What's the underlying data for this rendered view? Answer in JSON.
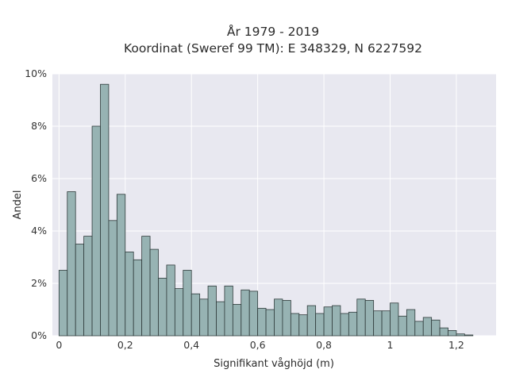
{
  "chart_data": {
    "type": "bar",
    "title_lines": [
      "År 1979 - 2019",
      "Koordinat (Sweref 99 TM): E 348329, N 6227592"
    ],
    "xlabel": "Signifikant våghöjd (m)",
    "ylabel": "Andel",
    "xlim": [
      -0.02,
      1.32
    ],
    "ylim": [
      0,
      10
    ],
    "x_ticks": [
      {
        "value": 0,
        "label": "0"
      },
      {
        "value": 0.2,
        "label": "0,2"
      },
      {
        "value": 0.4,
        "label": "0,4"
      },
      {
        "value": 0.6,
        "label": "0,6"
      },
      {
        "value": 0.8,
        "label": "0,8"
      },
      {
        "value": 1.0,
        "label": "1"
      },
      {
        "value": 1.2,
        "label": "1,2"
      }
    ],
    "y_ticks": [
      {
        "value": 0,
        "label": "0%"
      },
      {
        "value": 2,
        "label": "2%"
      },
      {
        "value": 4,
        "label": "4%"
      },
      {
        "value": 6,
        "label": "6%"
      },
      {
        "value": 8,
        "label": "8%"
      },
      {
        "value": 10,
        "label": "10%"
      }
    ],
    "bin_width": 0.025,
    "bin_start": 0.0125,
    "values": [
      2.5,
      5.5,
      3.5,
      3.8,
      8.0,
      9.6,
      4.4,
      5.4,
      3.2,
      2.9,
      3.8,
      3.3,
      2.2,
      2.7,
      1.8,
      2.5,
      1.6,
      1.4,
      1.9,
      1.3,
      1.9,
      1.2,
      1.75,
      1.7,
      1.05,
      1.0,
      1.4,
      1.35,
      0.85,
      0.8,
      1.15,
      0.85,
      1.1,
      1.15,
      0.85,
      0.9,
      1.4,
      1.35,
      0.95,
      0.95,
      1.25,
      0.75,
      1.0,
      0.55,
      0.7,
      0.6,
      0.3,
      0.2,
      0.07,
      0.03
    ],
    "grid": true,
    "colors": {
      "plot_background": "#e8e8f0",
      "grid": "#ffffff",
      "bar_fill": "#97b3b3",
      "bar_edge": "#2f3b3b"
    }
  }
}
